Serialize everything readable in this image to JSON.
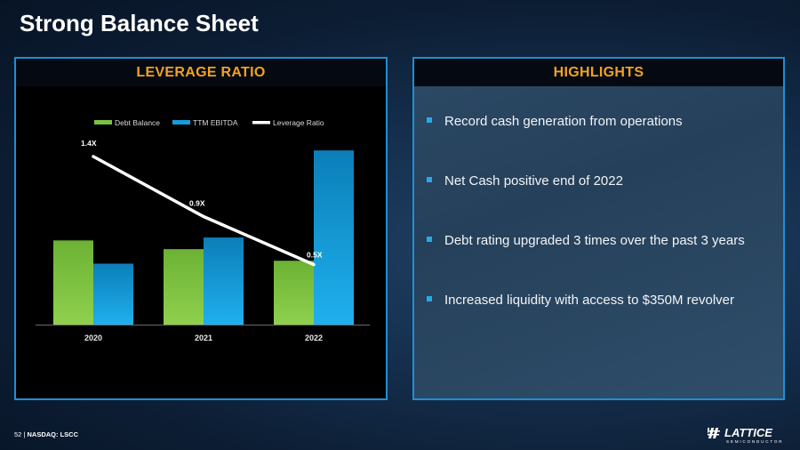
{
  "title": "Strong Balance Sheet",
  "left_panel": {
    "header": "LEVERAGE RATIO"
  },
  "right_panel": {
    "header": "HIGHLIGHTS",
    "bullets": [
      "Record cash generation from operations",
      "Net Cash positive end of 2022",
      "Debt rating upgraded 3 times over the past 3 years",
      "Increased liquidity with access to $350M revolver"
    ]
  },
  "footer": {
    "page": "52",
    "separator": "|",
    "ticker": "NASDAQ: LSCC"
  },
  "logo": {
    "name": "LATTICE",
    "sub": "SEMICONDUCTOR"
  },
  "colors": {
    "accent": "#f3a221",
    "border": "#1e8fd6",
    "debt": "#7cc242",
    "ebitda": "#139ddc",
    "line": "#ffffff"
  },
  "chart_data": {
    "type": "bar",
    "title": "",
    "categories": [
      "2020",
      "2021",
      "2022"
    ],
    "series": [
      {
        "name": "Debt Balance",
        "kind": "bar",
        "values": [
          58,
          52,
          44
        ]
      },
      {
        "name": "TTM EBITDA",
        "kind": "bar",
        "values": [
          42,
          60,
          120
        ]
      },
      {
        "name": "Leverage Ratio",
        "kind": "line",
        "values": [
          1.4,
          0.9,
          0.5
        ],
        "labels": [
          "1.4X",
          "0.9X",
          "0.5X"
        ]
      }
    ],
    "ylim": [
      0,
      125
    ],
    "line_ylim": [
      0,
      1.6
    ],
    "legend": "top",
    "grid": false
  }
}
